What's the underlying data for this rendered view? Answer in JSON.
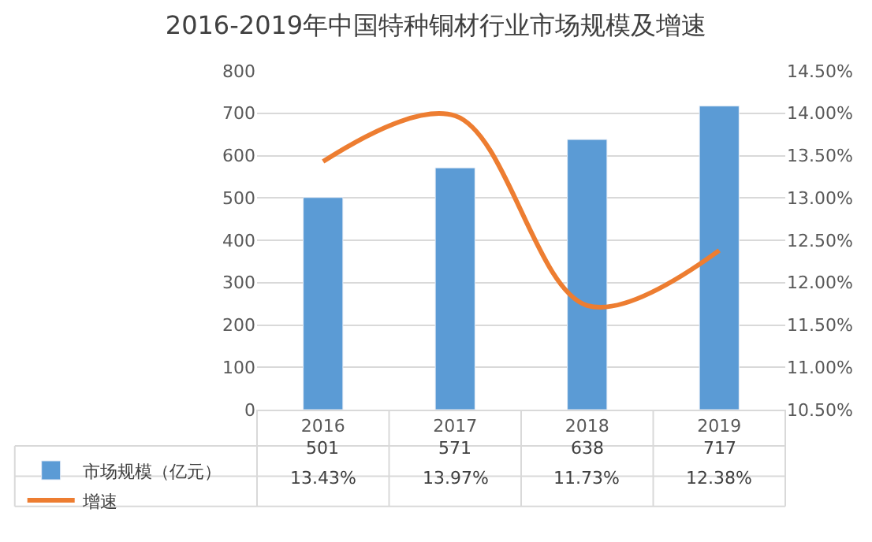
{
  "chart_data": {
    "type": "bar",
    "title": "2016-2019年中国特种铜材行业市场规模及增速",
    "categories": [
      "2016",
      "2017",
      "2018",
      "2019"
    ],
    "series": [
      {
        "name": "市场规模（亿元）",
        "color": "#5b9bd5",
        "values": [
          501,
          571,
          638,
          717
        ],
        "value_labels": [
          "501",
          "571",
          "638",
          "717"
        ]
      },
      {
        "name": "增速",
        "type": "line",
        "axis": "y2",
        "color": "#ed7d31",
        "values": [
          13.43,
          13.97,
          11.73,
          12.38
        ],
        "value_labels": [
          "13.43%",
          "13.97%",
          "11.73%",
          "12.38%"
        ],
        "marker": "none"
      }
    ],
    "ylim": [
      0,
      800
    ],
    "yticks": [
      0,
      100,
      200,
      300,
      400,
      500,
      600,
      700,
      800
    ],
    "y2lim": [
      10.5,
      14.5
    ],
    "y2ticks": [
      {
        "value": 10.5,
        "label": "10.50%"
      },
      {
        "value": 11.0,
        "label": "11.00%"
      },
      {
        "value": 11.5,
        "label": "11.50%"
      },
      {
        "value": 12.0,
        "label": "12.00%"
      },
      {
        "value": 12.5,
        "label": "12.50%"
      },
      {
        "value": 13.0,
        "label": "13.00%"
      },
      {
        "value": 13.5,
        "label": "13.50%"
      },
      {
        "value": 14.0,
        "label": "14.00%"
      },
      {
        "value": 14.5,
        "label": "14.50%"
      }
    ],
    "grid": "y",
    "legend": "bottom left"
  }
}
